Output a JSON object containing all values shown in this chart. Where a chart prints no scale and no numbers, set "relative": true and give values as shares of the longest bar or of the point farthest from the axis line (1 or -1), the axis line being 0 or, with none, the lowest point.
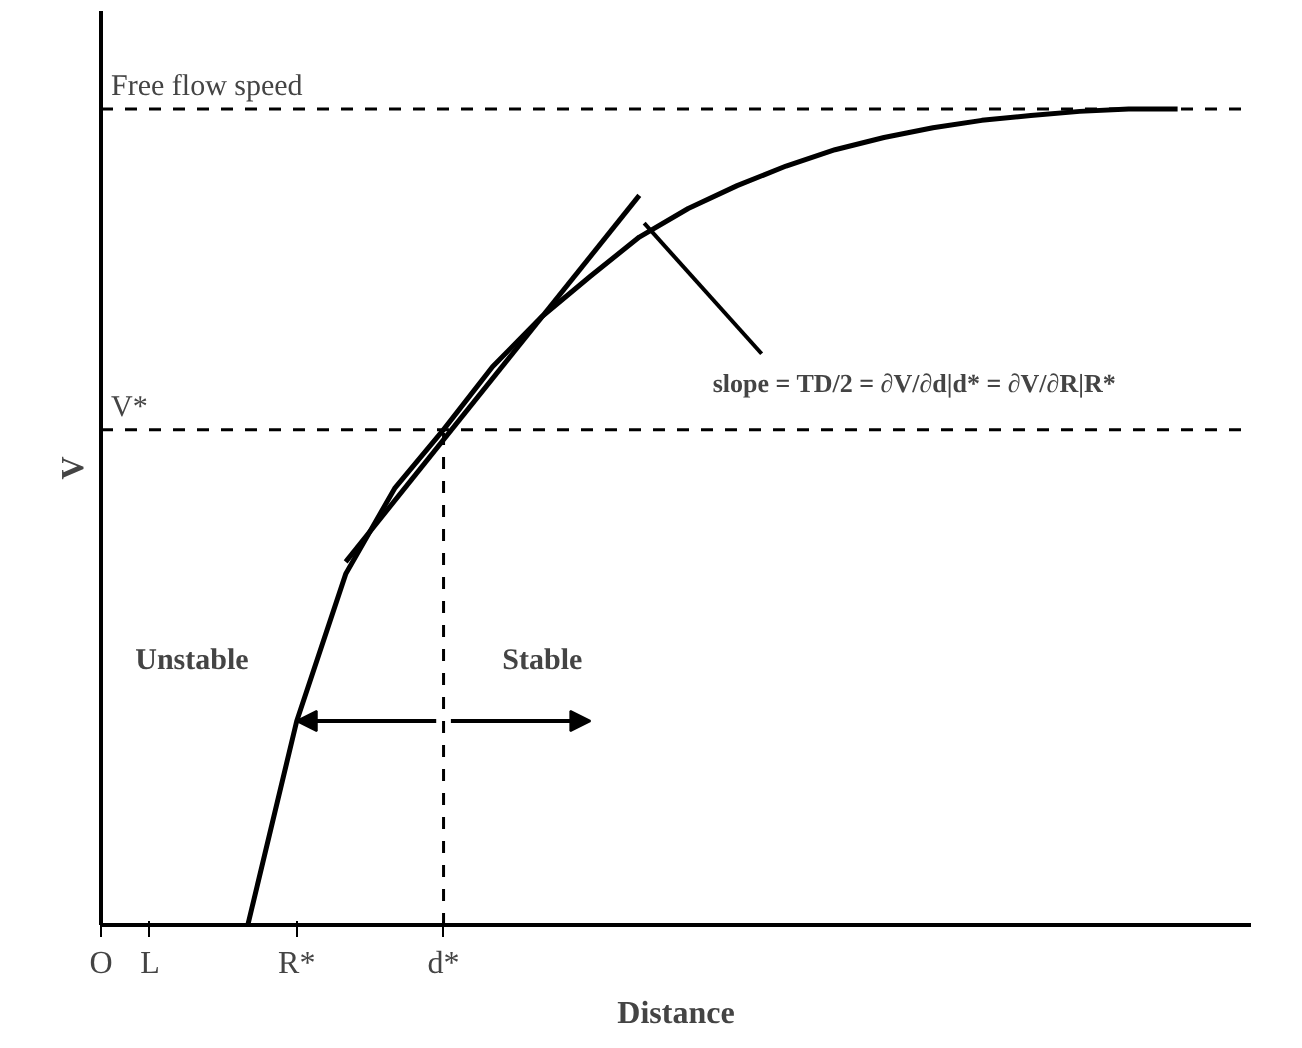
{
  "chart_data": {
    "type": "line",
    "relative": true,
    "xlabel": "Distance",
    "ylabel": "V",
    "categories": [
      "O",
      "L",
      null,
      null,
      "R*",
      null,
      null,
      "d*",
      null,
      null,
      null,
      null,
      null,
      null,
      null,
      null,
      null,
      null,
      null,
      null,
      null,
      null,
      null,
      null
    ],
    "series": [
      {
        "color": "#000000",
        "values": [
          null,
          null,
          null,
          0,
          0.25,
          0.43,
          0.535,
          0.607,
          0.684,
          0.745,
          0.795,
          0.843,
          0.878,
          0.906,
          0.93,
          0.95,
          0.965,
          0.977,
          0.986,
          0.992,
          0.997,
          1.0,
          1.0,
          null
        ]
      },
      {
        "type": "line",
        "color": "#000000",
        "values": [
          null,
          null,
          null,
          null,
          null,
          0.445,
          null,
          null,
          null,
          null,
          null,
          0.894,
          null,
          null,
          null,
          null,
          null,
          null,
          null,
          null,
          null,
          null,
          null,
          null
        ]
      }
    ],
    "ref_lines": [
      {
        "axis": "y",
        "value": 1.0,
        "label": "Free flow speed",
        "line_style": "dashed"
      },
      {
        "axis": "y",
        "value": 0.607,
        "label": "V*",
        "line_style": "dashed"
      },
      {
        "axis": "x",
        "value": "d*",
        "line_style": "dashed"
      }
    ],
    "annotations": [
      "Unstable",
      "Stable",
      "slope = TD/2 = ∂V/∂d|d* = ∂V/∂R|R*"
    ],
    "grid": false,
    "marker": "none",
    "line_style": "solid"
  }
}
